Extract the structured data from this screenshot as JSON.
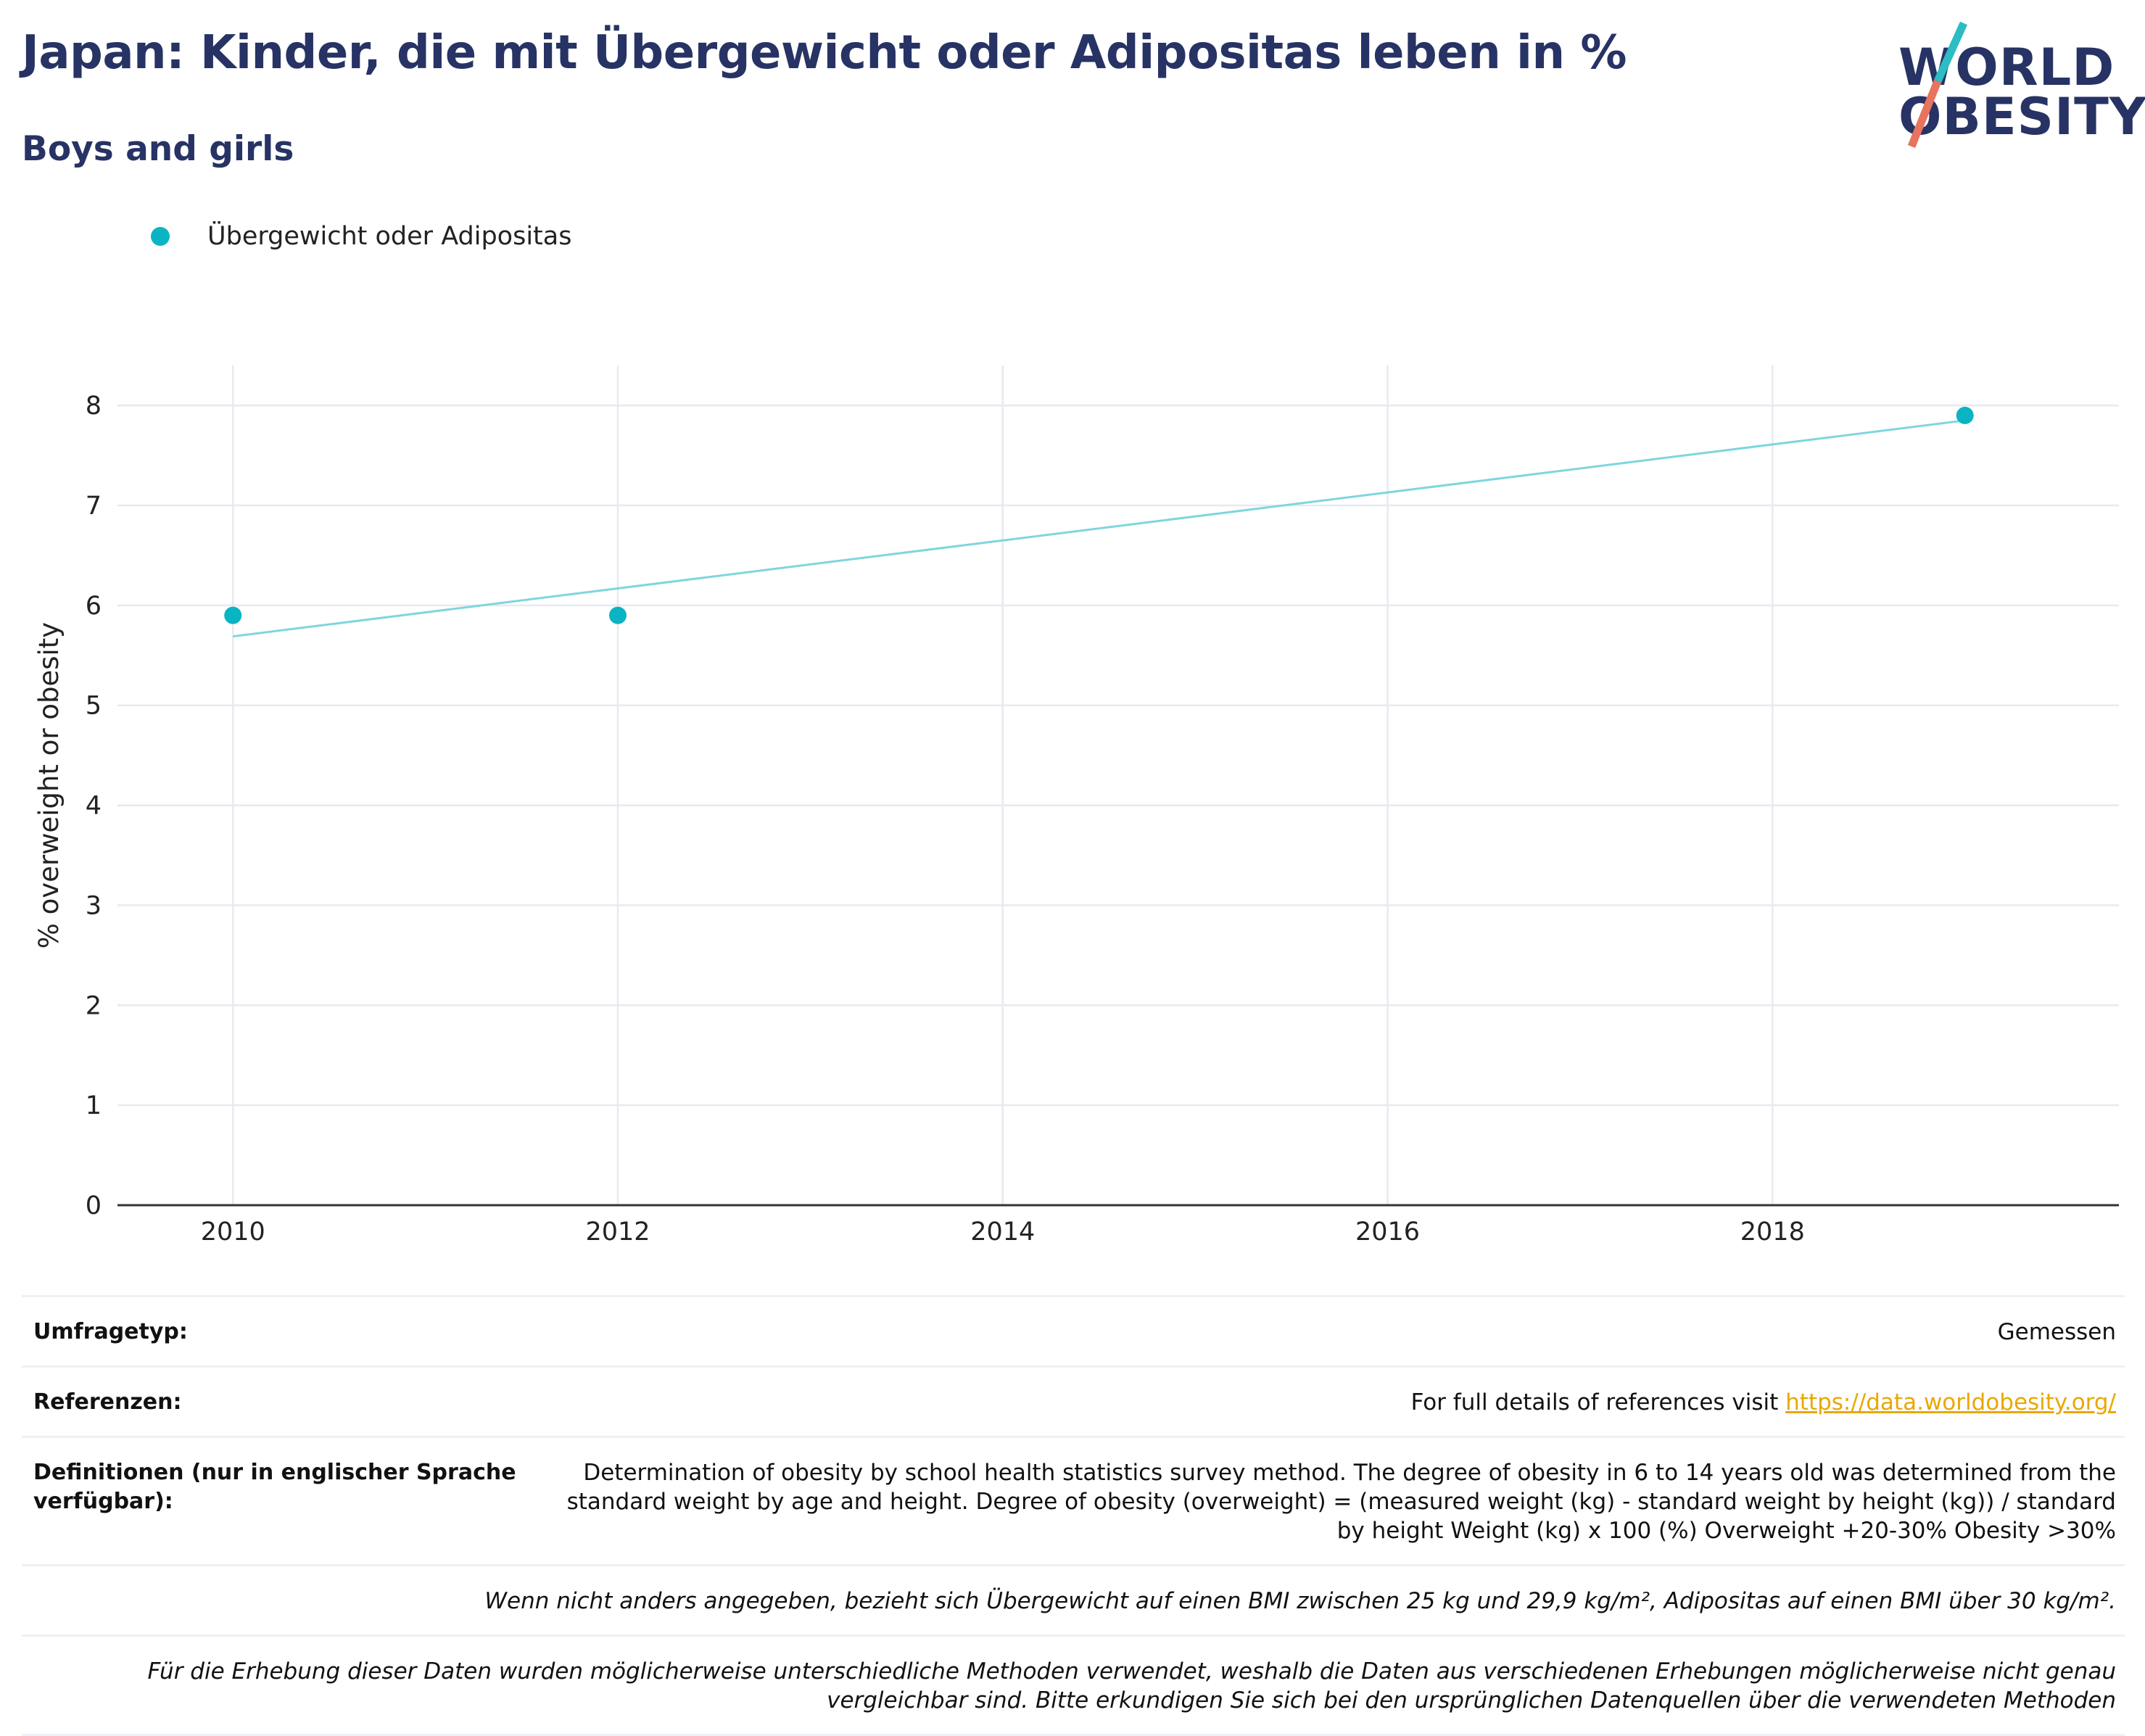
{
  "header": {
    "title": "Japan: Kinder, die mit Übergewicht oder Adipositas leben in %",
    "subtitle": "Boys and girls"
  },
  "logo": {
    "line1": "WORLD",
    "line2": "OBESITY",
    "colors": {
      "navy": "#273364",
      "teal": "#2bbcc4",
      "coral": "#e8735f"
    }
  },
  "legend": {
    "items": [
      {
        "label": "Übergewicht oder Adipositas",
        "color": "#0ab4c3"
      }
    ]
  },
  "chart_data": {
    "type": "scatter",
    "title": "",
    "xlabel": "",
    "ylabel": "% overweight or obesity",
    "xlim": [
      2009.4,
      2019.8
    ],
    "ylim": [
      0,
      8.4
    ],
    "xticks": [
      2010,
      2012,
      2014,
      2016,
      2018
    ],
    "yticks": [
      0,
      1,
      2,
      3,
      4,
      5,
      6,
      7,
      8
    ],
    "grid": true,
    "legend_position": "top-left",
    "series": [
      {
        "name": "Übergewicht oder Adipositas",
        "color": "#0ab4c3",
        "points": [
          {
            "x": 2010,
            "y": 5.9
          },
          {
            "x": 2012,
            "y": 5.9
          },
          {
            "x": 2019,
            "y": 7.9
          }
        ]
      }
    ],
    "trendline": {
      "color": "#7fd6dd",
      "points": [
        {
          "x": 2010,
          "y": 5.69
        },
        {
          "x": 2019,
          "y": 7.85
        }
      ]
    }
  },
  "footer": {
    "survey_label": "Umfragetyp:",
    "survey_value": "Gemessen",
    "references_label": "Referenzen:",
    "references_text": "For full details of references visit ",
    "references_link": "https://data.worldobesity.org/",
    "definitions_label": "Definitionen (nur in englischer Sprache verfügbar):",
    "definitions_text": "Determination of obesity by school health statistics survey method. The degree of obesity in 6 to 14 years old was determined from the standard weight by age and height. Degree of obesity (overweight) = (measured weight (kg) - standard weight by height (kg)) / standard by height Weight (kg) x 100 (%) Overweight +20-30% Obesity >30%",
    "note_bmi": "Wenn nicht anders angegeben, bezieht sich Übergewicht auf einen BMI zwischen 25 kg und 29,9 kg/m², Adipositas auf einen BMI über 30 kg/m².",
    "note_methods": "Für die Erhebung dieser Daten wurden möglicherweise unterschiedliche Methoden verwendet, weshalb die Daten aus verschiedenen Erhebungen möglicherweise nicht genau vergleichbar sind. Bitte erkundigen Sie sich bei den ursprünglichen Datenquellen über die verwendeten Methoden"
  }
}
